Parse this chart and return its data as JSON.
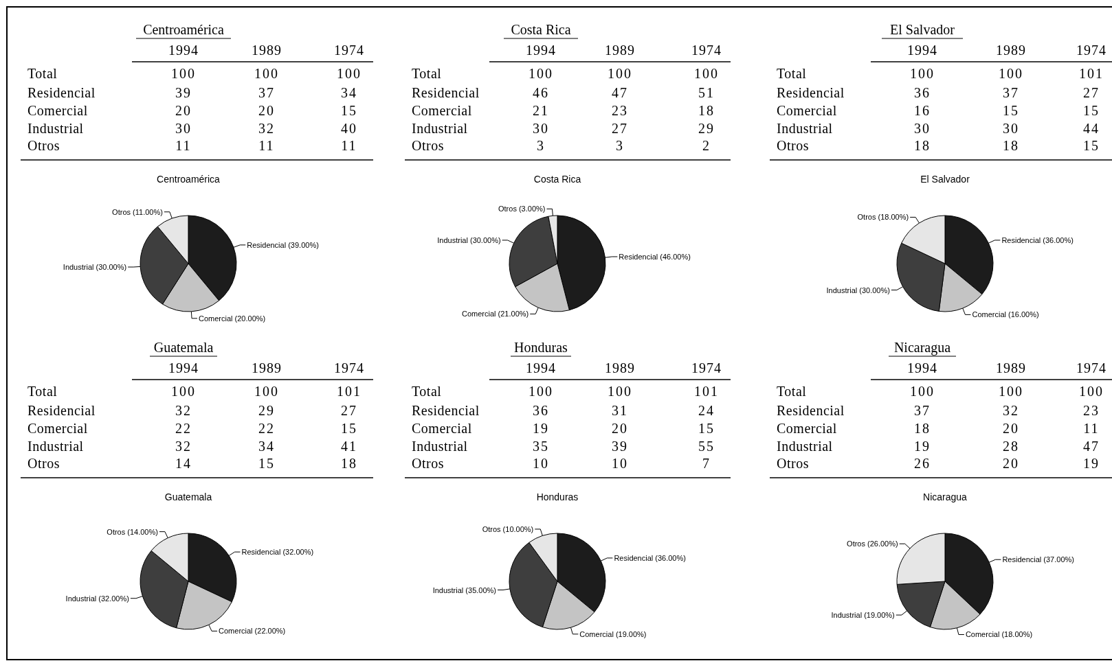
{
  "chart_data": [
    {
      "type": "heatmap",
      "data_labels": true,
      "title": "Centroamérica",
      "categories": [
        "1994",
        "1989",
        "1974"
      ],
      "y_categories": [
        "Total",
        "Residencial",
        "Comercial",
        "Industrial",
        "Otros"
      ],
      "cells": [
        [
          100,
          100,
          100
        ],
        [
          39,
          37,
          34
        ],
        [
          20,
          20,
          15
        ],
        [
          30,
          32,
          40
        ],
        [
          11,
          11,
          11
        ]
      ]
    },
    {
      "type": "heatmap",
      "data_labels": true,
      "title": "Costa Rica",
      "categories": [
        "1994",
        "1989",
        "1974"
      ],
      "y_categories": [
        "Total",
        "Residencial",
        "Comercial",
        "Industrial",
        "Otros"
      ],
      "cells": [
        [
          100,
          100,
          100
        ],
        [
          46,
          47,
          51
        ],
        [
          21,
          23,
          18
        ],
        [
          30,
          27,
          29
        ],
        [
          3,
          3,
          2
        ]
      ]
    },
    {
      "type": "heatmap",
      "data_labels": true,
      "title": "El Salvador",
      "categories": [
        "1994",
        "1989",
        "1974"
      ],
      "y_categories": [
        "Total",
        "Residencial",
        "Comercial",
        "Industrial",
        "Otros"
      ],
      "cells": [
        [
          100,
          100,
          101
        ],
        [
          36,
          37,
          27
        ],
        [
          16,
          15,
          15
        ],
        [
          30,
          30,
          44
        ],
        [
          18,
          18,
          15
        ]
      ]
    },
    {
      "type": "pie",
      "title": "Centroamérica",
      "categories": [
        "Residencial",
        "Comercial",
        "Industrial",
        "Otros"
      ],
      "values": [
        39,
        20,
        30,
        11
      ],
      "value_labels": [
        "(39.00%)",
        "(20.00%)",
        "(30.00%)",
        "(11.00%)"
      ],
      "colors": [
        "#1c1c1c",
        "#c4c4c4",
        "#3e3e3e",
        "#e6e6e6"
      ]
    },
    {
      "type": "pie",
      "title": "Costa Rica",
      "categories": [
        "Residencial",
        "Comercial",
        "Industrial",
        "Otros"
      ],
      "values": [
        46,
        21,
        30,
        3
      ],
      "value_labels": [
        "(46.00%)",
        "(21.00%)",
        "(30.00%)",
        "(3.00%)"
      ],
      "colors": [
        "#1c1c1c",
        "#c4c4c4",
        "#3e3e3e",
        "#e6e6e6"
      ]
    },
    {
      "type": "pie",
      "title": "El Salvador",
      "categories": [
        "Residencial",
        "Comercial",
        "Industrial",
        "Otros"
      ],
      "values": [
        36,
        16,
        30,
        18
      ],
      "value_labels": [
        "(36.00%)",
        "(16.00%)",
        "(30.00%)",
        "(18.00%)"
      ],
      "colors": [
        "#1c1c1c",
        "#c4c4c4",
        "#3e3e3e",
        "#e6e6e6"
      ]
    },
    {
      "type": "heatmap",
      "data_labels": true,
      "title": "Guatemala",
      "categories": [
        "1994",
        "1989",
        "1974"
      ],
      "y_categories": [
        "Total",
        "Residencial",
        "Comercial",
        "Industrial",
        "Otros"
      ],
      "cells": [
        [
          100,
          100,
          101
        ],
        [
          32,
          29,
          27
        ],
        [
          22,
          22,
          15
        ],
        [
          32,
          34,
          41
        ],
        [
          14,
          15,
          18
        ]
      ]
    },
    {
      "type": "heatmap",
      "data_labels": true,
      "title": "Honduras",
      "categories": [
        "1994",
        "1989",
        "1974"
      ],
      "y_categories": [
        "Total",
        "Residencial",
        "Comercial",
        "Industrial",
        "Otros"
      ],
      "cells": [
        [
          100,
          100,
          101
        ],
        [
          36,
          31,
          24
        ],
        [
          19,
          20,
          15
        ],
        [
          35,
          39,
          55
        ],
        [
          10,
          10,
          7
        ]
      ]
    },
    {
      "type": "heatmap",
      "data_labels": true,
      "title": "Nicaragua",
      "categories": [
        "1994",
        "1989",
        "1974"
      ],
      "y_categories": [
        "Total",
        "Residencial",
        "Comercial",
        "Industrial",
        "Otros"
      ],
      "cells": [
        [
          100,
          100,
          100
        ],
        [
          37,
          32,
          23
        ],
        [
          18,
          20,
          11
        ],
        [
          19,
          28,
          47
        ],
        [
          26,
          20,
          19
        ]
      ]
    },
    {
      "type": "pie",
      "title": "Guatemala",
      "categories": [
        "Residencial",
        "Comercial",
        "Industrial",
        "Otros"
      ],
      "values": [
        32,
        22,
        32,
        14
      ],
      "value_labels": [
        "(32.00%)",
        "(22.00%)",
        "(32.00%)",
        "(14.00%)"
      ],
      "colors": [
        "#1c1c1c",
        "#c4c4c4",
        "#3e3e3e",
        "#e6e6e6"
      ]
    },
    {
      "type": "pie",
      "title": "Honduras",
      "categories": [
        "Residencial",
        "Comercial",
        "Industrial",
        "Otros"
      ],
      "values": [
        36,
        19,
        35,
        10
      ],
      "value_labels": [
        "(36.00%)",
        "(19.00%)",
        "(35.00%)",
        "(10.00%)"
      ],
      "colors": [
        "#1c1c1c",
        "#c4c4c4",
        "#3e3e3e",
        "#e6e6e6"
      ]
    },
    {
      "type": "pie",
      "title": "Nicaragua",
      "categories": [
        "Residencial",
        "Comercial",
        "Industrial",
        "Otros"
      ],
      "values": [
        37,
        18,
        19,
        26
      ],
      "value_labels": [
        "(37.00%)",
        "(18.00%)",
        "(19.00%)",
        "(26.00%)"
      ],
      "colors": [
        "#1c1c1c",
        "#c4c4c4",
        "#3e3e3e",
        "#e6e6e6"
      ]
    }
  ]
}
